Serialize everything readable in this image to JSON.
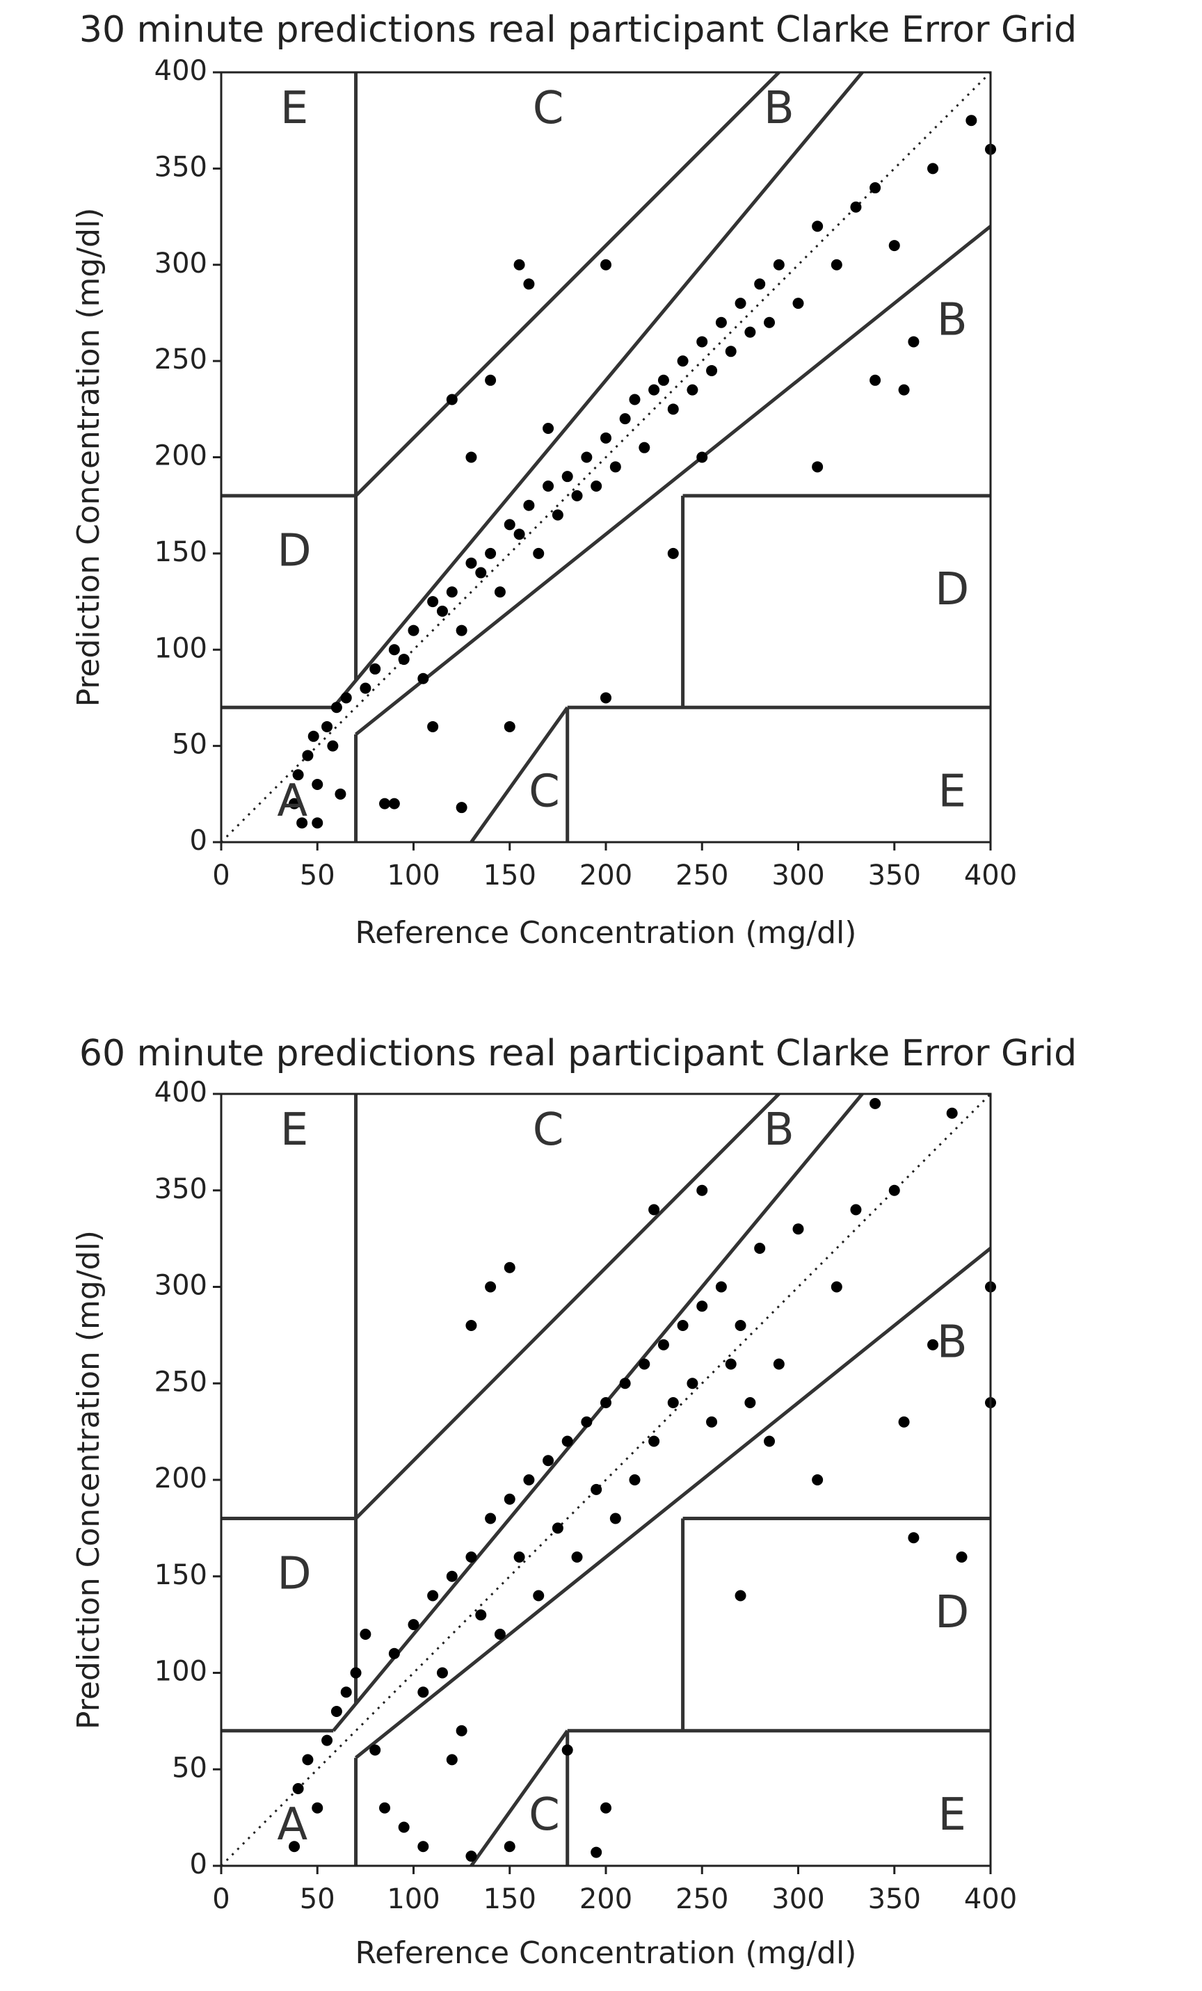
{
  "chart_data": [
    {
      "type": "scatter",
      "title": "30 minute predictions real participant Clarke Error Grid",
      "xlabel": "Reference Concentration (mg/dl)",
      "ylabel": "Prediction Concentration (mg/dl)",
      "color": "#000000",
      "x": [
        38,
        40,
        42,
        45,
        48,
        50,
        55,
        58,
        60,
        65,
        62,
        50,
        75,
        80,
        85,
        90,
        95,
        100,
        105,
        110,
        115,
        120,
        125,
        130,
        135,
        140,
        145,
        150,
        155,
        160,
        165,
        170,
        175,
        180,
        185,
        190,
        195,
        200,
        205,
        210,
        215,
        220,
        225,
        230,
        235,
        240,
        245,
        250,
        255,
        260,
        265,
        270,
        275,
        280,
        285,
        290,
        300,
        310,
        320,
        330,
        340,
        350,
        360,
        370,
        390,
        400,
        155,
        160,
        200,
        130,
        110,
        150,
        200,
        235,
        250,
        310,
        340,
        355,
        125,
        90,
        120,
        140,
        170
      ],
      "y": [
        20,
        35,
        10,
        45,
        55,
        30,
        60,
        50,
        70,
        75,
        25,
        10,
        80,
        90,
        20,
        100,
        95,
        110,
        85,
        125,
        120,
        130,
        110,
        145,
        140,
        150,
        130,
        165,
        160,
        175,
        150,
        185,
        170,
        190,
        180,
        200,
        185,
        210,
        195,
        220,
        230,
        205,
        235,
        240,
        225,
        250,
        235,
        260,
        245,
        270,
        255,
        280,
        265,
        290,
        270,
        300,
        280,
        320,
        300,
        330,
        340,
        310,
        260,
        350,
        375,
        360,
        300,
        290,
        300,
        200,
        60,
        60,
        75,
        150,
        200,
        195,
        240,
        235,
        18,
        20,
        230,
        240,
        215
      ],
      "xlim": [
        0,
        400
      ],
      "ylim": [
        0,
        400
      ],
      "xticks": [
        0,
        50,
        100,
        150,
        200,
        250,
        300,
        350,
        400
      ],
      "yticks": [
        0,
        50,
        100,
        150,
        200,
        250,
        300,
        350,
        400
      ],
      "reference_line": [
        0,
        0,
        400,
        400
      ],
      "zone_lines": [
        [
          0,
          70,
          58.33,
          70
        ],
        [
          58.33,
          70,
          333.33,
          400
        ],
        [
          70,
          84,
          70,
          400
        ],
        [
          0,
          180,
          70,
          180
        ],
        [
          70,
          180,
          290,
          400
        ],
        [
          70,
          0,
          70,
          56
        ],
        [
          70,
          56,
          400,
          320
        ],
        [
          180,
          0,
          180,
          70
        ],
        [
          180,
          70,
          400,
          70
        ],
        [
          240,
          70,
          240,
          180
        ],
        [
          240,
          180,
          400,
          180
        ],
        [
          130,
          0,
          180,
          70
        ]
      ],
      "zone_labels": [
        {
          "text": "E",
          "x": 38,
          "y": 380
        },
        {
          "text": "C",
          "x": 170,
          "y": 380
        },
        {
          "text": "B",
          "x": 290,
          "y": 380
        },
        {
          "text": "B",
          "x": 380,
          "y": 270
        },
        {
          "text": "D",
          "x": 38,
          "y": 150
        },
        {
          "text": "D",
          "x": 380,
          "y": 130
        },
        {
          "text": "A",
          "x": 37,
          "y": 20
        },
        {
          "text": "C",
          "x": 168,
          "y": 25
        },
        {
          "text": "E",
          "x": 380,
          "y": 25
        }
      ]
    },
    {
      "type": "scatter",
      "title": "60 minute predictions real participant Clarke Error Grid",
      "xlabel": "Reference Concentration (mg/dl)",
      "ylabel": "Prediction Concentration (mg/dl)",
      "color": "#000000",
      "x": [
        38,
        40,
        45,
        50,
        55,
        60,
        65,
        70,
        75,
        80,
        85,
        90,
        95,
        100,
        105,
        110,
        115,
        120,
        125,
        130,
        130,
        135,
        140,
        145,
        150,
        150,
        155,
        160,
        165,
        170,
        175,
        180,
        185,
        190,
        195,
        200,
        200,
        205,
        210,
        215,
        220,
        225,
        230,
        235,
        240,
        245,
        250,
        255,
        260,
        265,
        270,
        275,
        280,
        285,
        290,
        300,
        310,
        320,
        330,
        340,
        350,
        355,
        360,
        370,
        380,
        385,
        400,
        400,
        225,
        250,
        270,
        120,
        130,
        150,
        195,
        105,
        180,
        140
      ],
      "y": [
        10,
        40,
        55,
        30,
        65,
        80,
        90,
        100,
        120,
        60,
        30,
        110,
        20,
        125,
        90,
        140,
        100,
        150,
        70,
        280,
        160,
        130,
        180,
        120,
        190,
        310,
        160,
        200,
        140,
        210,
        175,
        220,
        160,
        230,
        195,
        240,
        30,
        180,
        250,
        200,
        260,
        220,
        270,
        240,
        280,
        250,
        290,
        230,
        300,
        260,
        280,
        240,
        320,
        220,
        260,
        330,
        200,
        300,
        340,
        395,
        350,
        230,
        170,
        270,
        390,
        160,
        300,
        240,
        340,
        350,
        140,
        55,
        5,
        10,
        7,
        10,
        60,
        300
      ],
      "xlim": [
        0,
        400
      ],
      "ylim": [
        0,
        400
      ],
      "xticks": [
        0,
        50,
        100,
        150,
        200,
        250,
        300,
        350,
        400
      ],
      "yticks": [
        0,
        50,
        100,
        150,
        200,
        250,
        300,
        350,
        400
      ],
      "reference_line": [
        0,
        0,
        400,
        400
      ],
      "zone_lines": [
        [
          0,
          70,
          58.33,
          70
        ],
        [
          58.33,
          70,
          333.33,
          400
        ],
        [
          70,
          84,
          70,
          400
        ],
        [
          0,
          180,
          70,
          180
        ],
        [
          70,
          180,
          290,
          400
        ],
        [
          70,
          0,
          70,
          56
        ],
        [
          70,
          56,
          400,
          320
        ],
        [
          180,
          0,
          180,
          70
        ],
        [
          180,
          70,
          400,
          70
        ],
        [
          240,
          70,
          240,
          180
        ],
        [
          240,
          180,
          400,
          180
        ],
        [
          130,
          0,
          180,
          70
        ]
      ],
      "zone_labels": [
        {
          "text": "E",
          "x": 38,
          "y": 380
        },
        {
          "text": "C",
          "x": 170,
          "y": 380
        },
        {
          "text": "B",
          "x": 290,
          "y": 380
        },
        {
          "text": "B",
          "x": 380,
          "y": 270
        },
        {
          "text": "D",
          "x": 38,
          "y": 150
        },
        {
          "text": "D",
          "x": 380,
          "y": 130
        },
        {
          "text": "A",
          "x": 37,
          "y": 20
        },
        {
          "text": "C",
          "x": 168,
          "y": 25
        },
        {
          "text": "E",
          "x": 380,
          "y": 25
        }
      ]
    }
  ]
}
